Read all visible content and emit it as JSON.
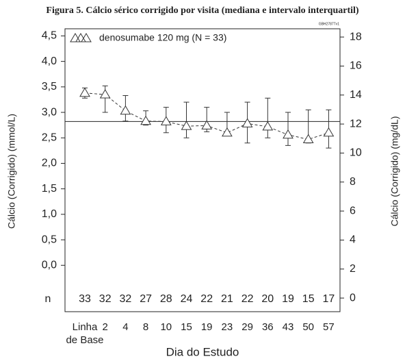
{
  "chart_data": {
    "type": "line",
    "title": "Figura 5. Cálcio sérico corrigido por visita (mediana e intervalo interquartil)",
    "code": "GBH2787Tv1",
    "x_label": "Dia do Estudo",
    "y_label": "Cálcio (Corrigido) (mmol/L)",
    "y2_label": "Cálcio (Corrigido) (mg/dL)",
    "categories": [
      "Linha de Base",
      "2",
      "4",
      "8",
      "10",
      "15",
      "19",
      "23",
      "29",
      "36",
      "43",
      "50",
      "57"
    ],
    "series": [
      {
        "name": "denosumabe 120 mg (N = 33)",
        "color": "#333333",
        "values": [
          3.38,
          3.35,
          3.03,
          2.83,
          2.82,
          2.73,
          2.74,
          2.6,
          2.78,
          2.72,
          2.56,
          2.47,
          2.6
        ],
        "lower": [
          3.28,
          3.0,
          2.83,
          2.75,
          2.6,
          2.5,
          2.62,
          2.55,
          2.4,
          2.5,
          2.35,
          2.4,
          2.3
        ],
        "upper": [
          3.48,
          3.52,
          3.33,
          3.03,
          3.1,
          3.2,
          3.1,
          3.0,
          3.2,
          3.28,
          3.0,
          3.05,
          3.05
        ]
      }
    ],
    "reference_line": 2.82,
    "n_label": "n",
    "n_values": [
      33,
      32,
      32,
      27,
      28,
      24,
      22,
      21,
      22,
      20,
      19,
      15,
      17
    ],
    "ylim": [
      -0.91,
      4.64
    ],
    "yticks": [
      {
        "value": 0,
        "label": "0,0"
      },
      {
        "value": 0.5,
        "label": "0,5"
      },
      {
        "value": 1,
        "label": "1,0"
      },
      {
        "value": 1.5,
        "label": "1,5"
      },
      {
        "value": 2,
        "label": "2,0"
      },
      {
        "value": 2.5,
        "label": "2,5"
      },
      {
        "value": 3,
        "label": "3,0"
      },
      {
        "value": 3.5,
        "label": "3,5"
      },
      {
        "value": 4,
        "label": "4,0"
      },
      {
        "value": 4.5,
        "label": "4,5"
      }
    ],
    "y2lim": [
      -0.94,
      18.57
    ],
    "y2ticks": [
      0,
      2,
      4,
      6,
      8,
      10,
      12,
      14,
      16,
      18
    ],
    "legend": "top-left"
  }
}
